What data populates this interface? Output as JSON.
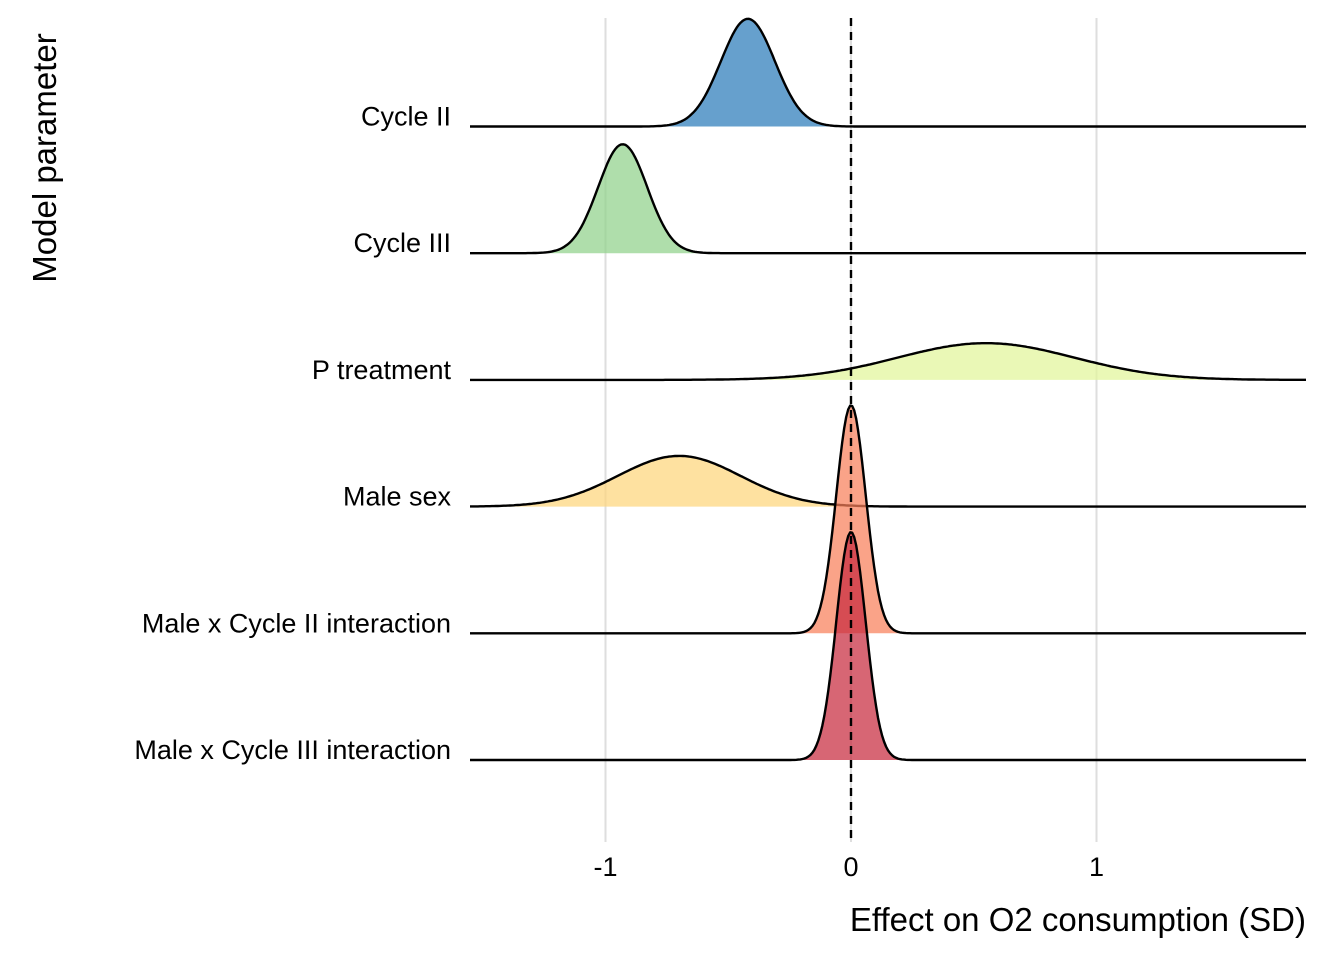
{
  "chart_data": {
    "type": "ridgeline",
    "xlabel": "Effect on O2 consumption (SD)",
    "ylabel": "Model parameter",
    "xlim": [
      -1.6,
      1.86
    ],
    "xticks": [
      -1,
      0,
      1
    ],
    "xtick_labels": [
      "-1",
      "0",
      "1"
    ],
    "grid": "vertical major gridlines",
    "reference_line": {
      "x": 0,
      "style": "dashed"
    },
    "legend": "none",
    "series": [
      {
        "name": "Cycle II",
        "color": "#2b7bba",
        "mean": -0.42,
        "sd": 0.11,
        "relative_peak": 0.85
      },
      {
        "name": "Cycle III",
        "color": "#90d18b",
        "mean": -0.93,
        "sd": 0.1,
        "relative_peak": 0.86
      },
      {
        "name": "P treatment",
        "color": "#e2f59a",
        "mean": 0.55,
        "sd": 0.36,
        "relative_peak": 0.29
      },
      {
        "name": "Male sex",
        "color": "#fdd67b",
        "mean": -0.7,
        "sd": 0.25,
        "relative_peak": 0.4
      },
      {
        "name": "Male x Cycle II interaction",
        "color": "#f87f5a",
        "mean": 0.0,
        "sd": 0.06,
        "relative_peak": 1.8
      },
      {
        "name": "Male x Cycle III interaction",
        "color": "#c82b3f",
        "mean": 0.0,
        "sd": 0.06,
        "relative_peak": 1.8
      }
    ]
  }
}
